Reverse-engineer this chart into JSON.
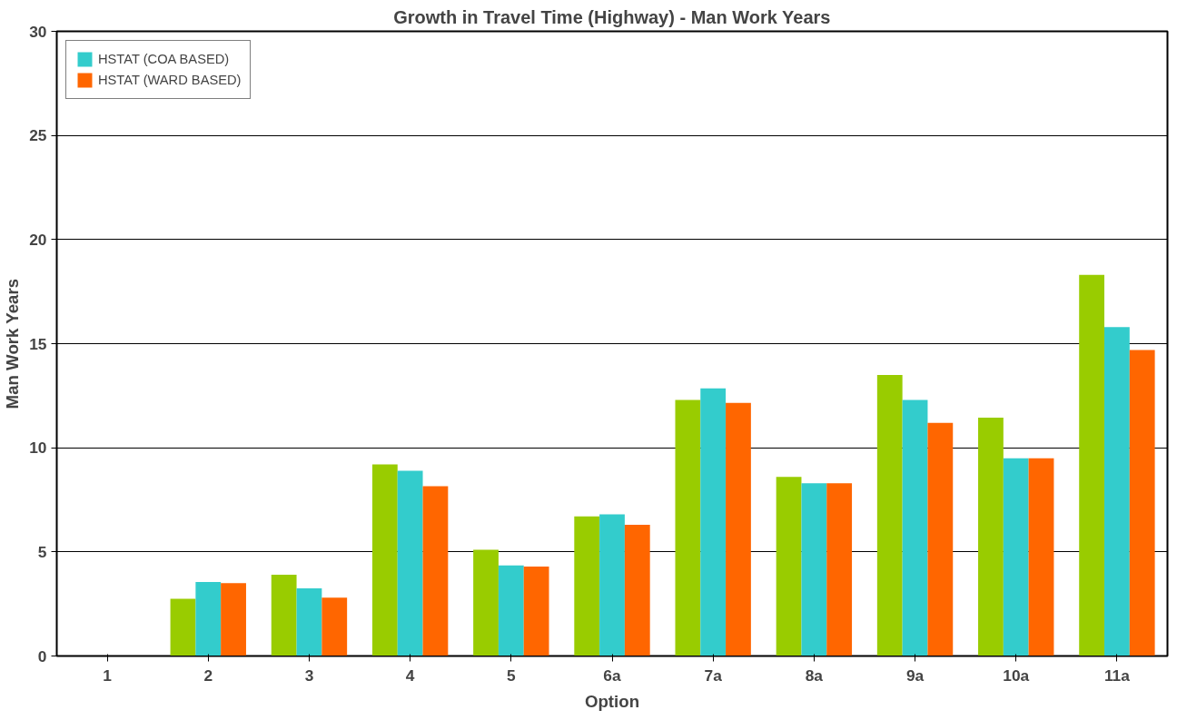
{
  "chart_data": {
    "type": "bar",
    "title": "Growth in Travel Time (Highway) - Man Work Years",
    "xlabel": "Option",
    "ylabel": "Man Work Years",
    "categories": [
      "1",
      "2",
      "3",
      "4",
      "5",
      "6a",
      "7a",
      "8a",
      "9a",
      "10a",
      "11a"
    ],
    "series": [
      {
        "color": "#99cc00",
        "values": [
          0,
          2.75,
          3.9,
          9.2,
          5.1,
          6.7,
          12.3,
          8.6,
          13.5,
          11.45,
          18.3
        ]
      },
      {
        "name": "HSTAT (COA BASED)",
        "color": "#33cccc",
        "values": [
          0,
          3.55,
          3.25,
          8.9,
          4.35,
          6.8,
          12.85,
          8.3,
          12.3,
          9.5,
          15.8
        ]
      },
      {
        "name": "HSTAT (WARD BASED)",
        "color": "#ff6600",
        "values": [
          0,
          3.5,
          2.8,
          8.15,
          4.3,
          6.3,
          12.15,
          8.3,
          11.2,
          9.5,
          14.7
        ]
      }
    ],
    "ylim": [
      0,
      30
    ],
    "yticks": [
      0,
      5,
      10,
      15,
      20,
      25,
      30
    ],
    "grid": "y",
    "legend": "top left"
  }
}
